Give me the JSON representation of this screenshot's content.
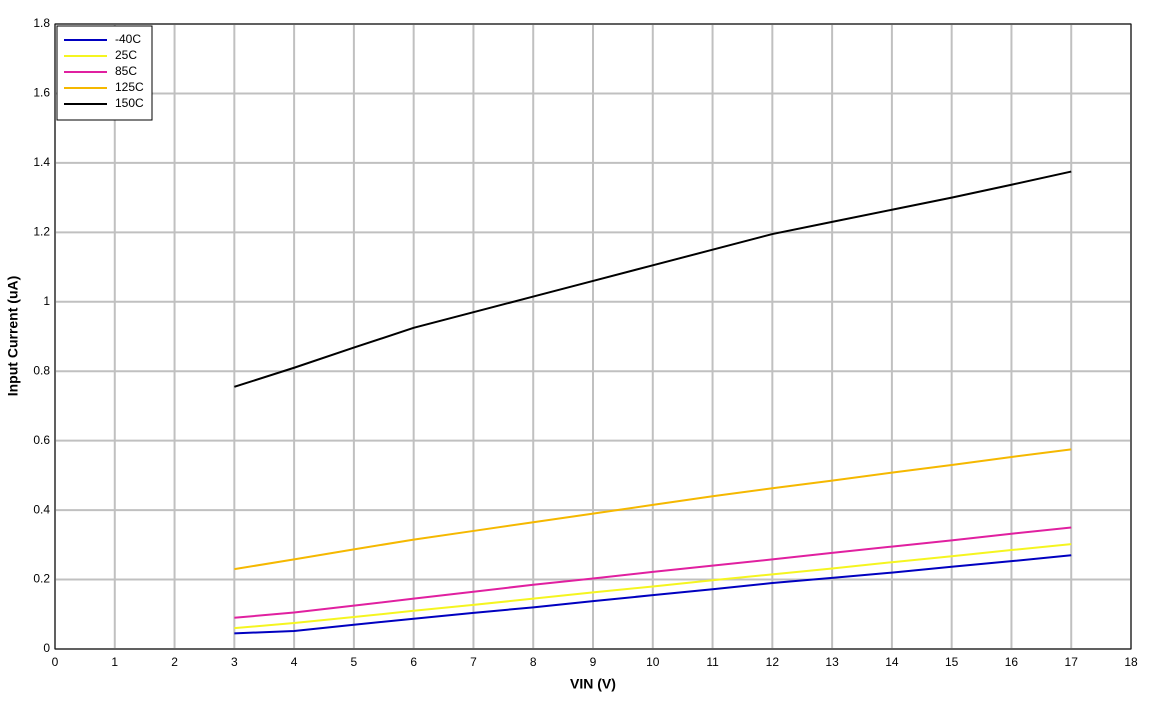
{
  "chart_data": {
    "type": "line",
    "xlabel": "VIN (V)",
    "ylabel": "Input Current (uA)",
    "x": [
      3,
      4,
      5,
      6,
      7,
      8,
      9,
      10,
      11,
      12,
      13,
      14,
      15,
      16,
      17
    ],
    "series": [
      {
        "name": "-40C",
        "color": "#0000c0",
        "values": [
          0.045,
          0.052,
          0.07,
          0.087,
          0.104,
          0.12,
          0.138,
          0.155,
          0.172,
          0.19,
          0.205,
          0.22,
          0.237,
          0.253,
          0.27
        ]
      },
      {
        "name": "25C",
        "color": "#f5f520",
        "values": [
          0.06,
          0.075,
          0.092,
          0.11,
          0.127,
          0.145,
          0.163,
          0.18,
          0.198,
          0.215,
          0.232,
          0.25,
          0.267,
          0.285,
          0.302
        ]
      },
      {
        "name": "85C",
        "color": "#e020a0",
        "values": [
          0.09,
          0.105,
          0.125,
          0.145,
          0.165,
          0.185,
          0.203,
          0.222,
          0.24,
          0.258,
          0.277,
          0.295,
          0.313,
          0.332,
          0.35
        ]
      },
      {
        "name": "125C",
        "color": "#f5b800",
        "values": [
          0.23,
          0.258,
          0.287,
          0.315,
          0.34,
          0.365,
          0.39,
          0.415,
          0.44,
          0.463,
          0.485,
          0.508,
          0.53,
          0.553,
          0.575
        ]
      },
      {
        "name": "150C",
        "color": "#000000",
        "values": [
          0.755,
          0.81,
          0.868,
          0.925,
          0.97,
          1.015,
          1.06,
          1.105,
          1.15,
          1.195,
          1.23,
          1.265,
          1.3,
          1.337,
          1.375
        ]
      }
    ],
    "xlim": [
      0,
      18
    ],
    "xticks": [
      0,
      1,
      2,
      3,
      4,
      5,
      6,
      7,
      8,
      9,
      10,
      11,
      12,
      13,
      14,
      15,
      16,
      17,
      18
    ],
    "ylim": [
      0,
      1.8
    ],
    "yticks": [
      0,
      0.2,
      0.4,
      0.6,
      0.8,
      1,
      1.2,
      1.4,
      1.6,
      1.8
    ],
    "grid": true,
    "legend": "upper-left"
  }
}
